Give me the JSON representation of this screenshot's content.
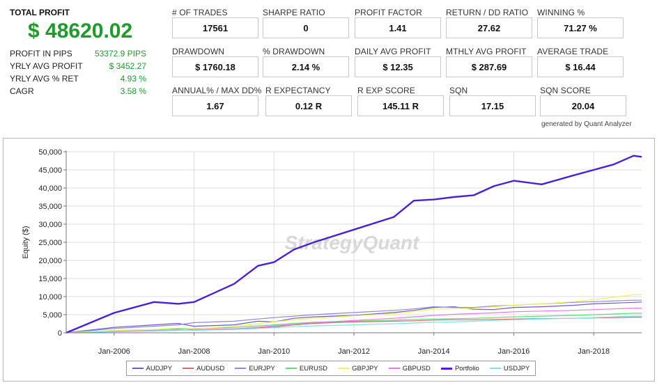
{
  "summary": {
    "total_profit_label": "TOTAL PROFIT",
    "total_profit_value": "$ 48620.02",
    "rows": [
      {
        "label": "PROFIT IN PIPS",
        "value": "53372.9 PIPS"
      },
      {
        "label": "YRLY AVG PROFIT",
        "value": "$ 3452.27"
      },
      {
        "label": "YRLY AVG % RET",
        "value": "4.93 %"
      },
      {
        "label": "CAGR",
        "value": "3.58 %"
      }
    ]
  },
  "stats": [
    {
      "label": "# OF TRADES",
      "value": "17561"
    },
    {
      "label": "SHARPE RATIO",
      "value": "0"
    },
    {
      "label": "PROFIT FACTOR",
      "value": "1.41"
    },
    {
      "label": "RETURN / DD RATIO",
      "value": "27.62"
    },
    {
      "label": "WINNING %",
      "value": "71.27 %"
    },
    {
      "label": "DRAWDOWN",
      "value": "$ 1760.18"
    },
    {
      "label": "% DRAWDOWN",
      "value": "2.14 %"
    },
    {
      "label": "DAILY AVG PROFIT",
      "value": "$ 12.35"
    },
    {
      "label": "MTHLY AVG PROFIT",
      "value": "$ 287.69"
    },
    {
      "label": "AVERAGE TRADE",
      "value": "$ 16.44"
    },
    {
      "label": "ANNUAL% / MAX DD%",
      "value": "1.67"
    },
    {
      "label": "R EXPECTANCY",
      "value": "0.12 R"
    },
    {
      "label": "R EXP SCORE",
      "value": "145.11 R"
    },
    {
      "label": "SQN",
      "value": "17.15"
    },
    {
      "label": "SQN SCORE",
      "value": "20.04"
    }
  ],
  "credit": "generated by Quant Analyzer",
  "watermark": "StrategyQuant",
  "colors": {
    "profit_green": "#1e9b2a",
    "portfolio": "#4a1fd6",
    "grid": "#dddddd"
  },
  "chart_data": {
    "type": "line",
    "title": "",
    "xlabel": "",
    "ylabel": "Equity ($)",
    "xlim": [
      2004.8,
      2019.2
    ],
    "ylim": [
      0,
      50000
    ],
    "x_ticks": [
      2006,
      2008,
      2010,
      2012,
      2014,
      2016,
      2018
    ],
    "x_tick_labels": [
      "Jan-2006",
      "Jan-2008",
      "Jan-2010",
      "Jan-2012",
      "Jan-2014",
      "Jan-2016",
      "Jan-2018"
    ],
    "y_ticks": [
      0,
      5000,
      10000,
      15000,
      20000,
      25000,
      30000,
      35000,
      40000,
      45000,
      50000
    ],
    "y_tick_labels": [
      "0",
      "5,000",
      "10,000",
      "15,000",
      "20,000",
      "25,000",
      "30,000",
      "35,000",
      "40,000",
      "45,000",
      "50,000"
    ],
    "grid": true,
    "legend_position": "bottom",
    "x": [
      2004.8,
      2006.0,
      2007.0,
      2007.6,
      2008.0,
      2009.0,
      2009.6,
      2010.0,
      2010.5,
      2011.0,
      2012.0,
      2013.0,
      2013.5,
      2014.0,
      2014.5,
      2015.0,
      2015.5,
      2016.0,
      2016.7,
      2017.5,
      2018.0,
      2018.5,
      2019.0,
      2019.2
    ],
    "series": [
      {
        "name": "AUDJPY",
        "color": "#6a5acd",
        "values": [
          0,
          1500,
          2200,
          2600,
          1800,
          2200,
          3200,
          3000,
          4000,
          4400,
          4800,
          5600,
          6200,
          7000,
          7200,
          6500,
          6400,
          7000,
          7200,
          7600,
          8000,
          8200,
          8400,
          8500
        ]
      },
      {
        "name": "AUDUSD",
        "color": "#e8636b",
        "values": [
          0,
          500,
          700,
          1200,
          900,
          1100,
          1400,
          1600,
          2200,
          2600,
          3000,
          3200,
          3300,
          3500,
          3600,
          3600,
          3700,
          3800,
          3900,
          4000,
          4100,
          4200,
          4300,
          4300
        ]
      },
      {
        "name": "EURJPY",
        "color": "#8d88d8",
        "values": [
          0,
          1200,
          1800,
          2200,
          2800,
          3200,
          3800,
          4200,
          4600,
          5000,
          5600,
          6200,
          6600,
          7200,
          7000,
          7000,
          7400,
          7600,
          8000,
          8400,
          8600,
          8800,
          9000,
          9000
        ]
      },
      {
        "name": "EURUSD",
        "color": "#5fdc7a",
        "values": [
          0,
          600,
          900,
          1000,
          1200,
          1500,
          1900,
          2200,
          2600,
          2900,
          3200,
          3500,
          3700,
          3800,
          3900,
          4000,
          4200,
          4400,
          4600,
          4800,
          5000,
          5200,
          5400,
          5400
        ]
      },
      {
        "name": "GBPJPY",
        "color": "#f2f25a",
        "values": [
          0,
          700,
          900,
          1300,
          1100,
          1800,
          2500,
          3000,
          3600,
          4000,
          4700,
          5300,
          5800,
          6500,
          6700,
          6800,
          7200,
          7600,
          8000,
          8600,
          9200,
          9800,
          10500,
          10500
        ]
      },
      {
        "name": "GBPUSD",
        "color": "#e678e6",
        "values": [
          0,
          300,
          500,
          700,
          800,
          1100,
          1500,
          1900,
          2300,
          2800,
          3400,
          4000,
          4400,
          4800,
          5100,
          5300,
          5500,
          5800,
          6000,
          6200,
          6400,
          6600,
          6800,
          6800
        ]
      },
      {
        "name": "Portfolio",
        "color": "#4a1fd6",
        "values": [
          0,
          5500,
          8500,
          8000,
          8500,
          13500,
          18500,
          19500,
          23000,
          25000,
          28500,
          32000,
          36500,
          36800,
          37500,
          38000,
          40500,
          42000,
          41000,
          43500,
          45000,
          46500,
          48900,
          48600
        ]
      },
      {
        "name": "USDJPY",
        "color": "#77e6e6",
        "values": [
          0,
          400,
          600,
          800,
          700,
          900,
          1200,
          1400,
          1700,
          1900,
          2200,
          2500,
          2700,
          2900,
          3000,
          3200,
          3400,
          3600,
          3800,
          4000,
          4200,
          4400,
          4600,
          4600
        ]
      }
    ]
  }
}
